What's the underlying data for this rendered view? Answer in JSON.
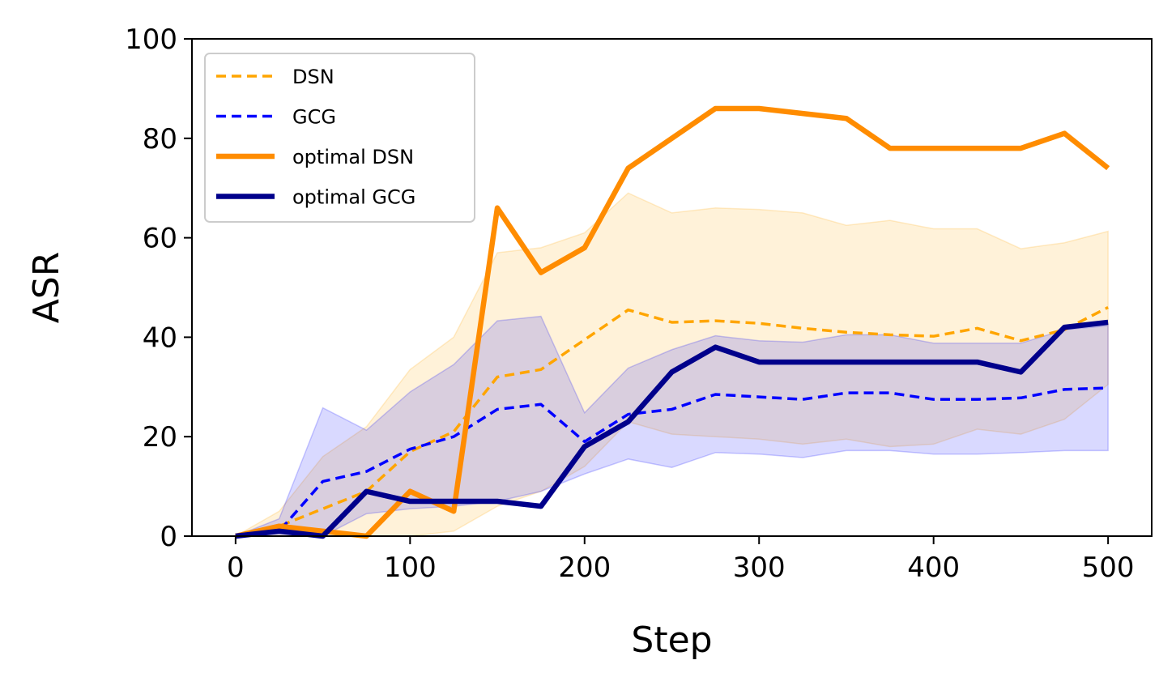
{
  "chart_data": {
    "type": "line",
    "xlabel": "Step",
    "ylabel": "ASR",
    "xlim": [
      -25,
      525
    ],
    "ylim": [
      0,
      100
    ],
    "xticks": [
      0,
      100,
      200,
      300,
      400,
      500
    ],
    "yticks": [
      0,
      20,
      40,
      60,
      80,
      100
    ],
    "grid": false,
    "legend_position": "top-left",
    "x": [
      0,
      25,
      50,
      75,
      100,
      125,
      150,
      175,
      200,
      225,
      250,
      275,
      300,
      325,
      350,
      375,
      400,
      425,
      450,
      475,
      500
    ],
    "series": [
      {
        "name": "DSN",
        "style": "dashed",
        "color": "#ffa500",
        "values": [
          0,
          2,
          5.5,
          9,
          17,
          21,
          32,
          33.5,
          39.5,
          45.5,
          43,
          43.3,
          42.8,
          41.8,
          41,
          40.5,
          40.2,
          41.8,
          39.3,
          41.5,
          46
        ],
        "band": {
          "color": "#ffa500",
          "lower": [
            0,
            0,
            0,
            0,
            0,
            1,
            6,
            9,
            14,
            23,
            20.5,
            20,
            19.5,
            18.5,
            19.5,
            18,
            18.5,
            21.5,
            20.5,
            23.5,
            30.5
          ],
          "upper": [
            0,
            5,
            16,
            22,
            33.5,
            40,
            57,
            58,
            61,
            69,
            65,
            66,
            65.7,
            65,
            62.5,
            63.5,
            61.8,
            61.8,
            57.8,
            59,
            61.3
          ]
        }
      },
      {
        "name": "GCG",
        "style": "dashed",
        "color": "#0000ff",
        "values": [
          0,
          1,
          11,
          13,
          17.5,
          20,
          25.5,
          26.5,
          19,
          24.5,
          25.5,
          28.5,
          28,
          27.5,
          28.8,
          28.8,
          27.5,
          27.5,
          27.8,
          29.5,
          29.8
        ],
        "band": {
          "color": "#0000ff",
          "lower": [
            0,
            0,
            0,
            4.5,
            5.5,
            6,
            7,
            9,
            12.5,
            15.5,
            13.8,
            16.8,
            16.5,
            15.8,
            17.2,
            17.2,
            16.5,
            16.5,
            16.8,
            17.2,
            17.2
          ],
          "upper": [
            0,
            3.5,
            25.8,
            21.3,
            29,
            34.5,
            43.3,
            44.2,
            24.8,
            33.8,
            37.5,
            40.3,
            39.3,
            39,
            40.5,
            40.5,
            38.8,
            38.8,
            38.8,
            41.5,
            42.3
          ]
        }
      },
      {
        "name": "optimal DSN",
        "style": "solid",
        "color": "#ff8c00",
        "values": [
          0,
          2,
          1,
          0,
          9,
          5,
          66,
          53,
          58,
          74,
          80,
          86,
          86,
          85,
          84,
          78,
          78,
          78,
          78,
          81,
          74
        ]
      },
      {
        "name": "optimal GCG",
        "style": "solid",
        "color": "#00008b",
        "values": [
          0,
          1,
          0,
          9,
          7,
          7,
          7,
          6,
          18,
          23,
          33,
          38,
          35,
          35,
          35,
          35,
          35,
          35,
          33,
          42,
          43
        ]
      }
    ]
  }
}
